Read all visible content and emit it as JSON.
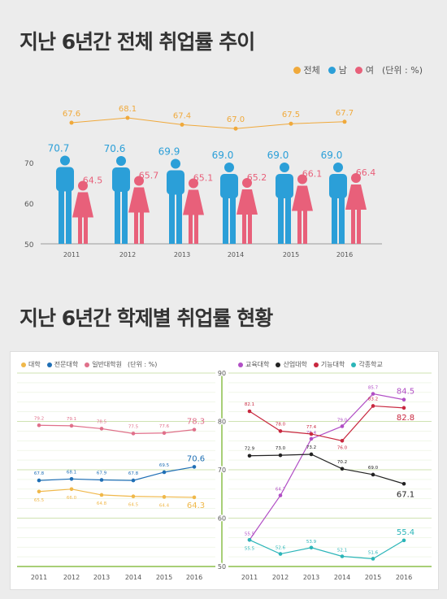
{
  "titles": {
    "top": "지난 6년간 전체 취업률 추이",
    "bottom": "지난 6년간 학제별 취업률 현황"
  },
  "legend_top": {
    "items": [
      {
        "label": "전체",
        "color": "#f0a93b"
      },
      {
        "label": "남",
        "color": "#2b9fd8"
      },
      {
        "label": "여",
        "color": "#e8607a"
      }
    ],
    "unit": "(단위 : %)"
  },
  "chart_data": [
    {
      "type": "line",
      "title": "지난 6년간 전체 취업률 추이",
      "x": [
        "2011",
        "2012",
        "2013",
        "2014",
        "2015",
        "2016"
      ],
      "yticks": [
        "70",
        "60",
        "50"
      ],
      "ylim": [
        50,
        73
      ],
      "series": [
        {
          "name": "전체",
          "color": "#f0a93b",
          "values": [
            67.6,
            68.1,
            67.4,
            67.0,
            67.5,
            67.7
          ],
          "labels": [
            "67.6",
            "68.1",
            "67.4",
            "67.0",
            "67.5",
            "67.7"
          ]
        },
        {
          "name": "남",
          "color": "#2b9fd8",
          "values": [
            70.7,
            70.6,
            69.9,
            69.0,
            69.0,
            69.0
          ],
          "labels": [
            "70.7",
            "70.6",
            "69.9",
            "69.0",
            "69.0",
            "69.0"
          ]
        },
        {
          "name": "여",
          "color": "#e8607a",
          "values": [
            64.5,
            65.7,
            65.1,
            65.2,
            66.1,
            66.4
          ],
          "labels": [
            "64.5",
            "65.7",
            "65.1",
            "65.2",
            "66.1",
            "66.4"
          ]
        }
      ]
    },
    {
      "type": "line",
      "title": "지난 6년간 학제별 취업률 현황",
      "x": [
        "2011",
        "2012",
        "2013",
        "2014",
        "2015",
        "2016"
      ],
      "yticks": [
        "90",
        "80",
        "70",
        "60",
        "50"
      ],
      "ylim": [
        50,
        90
      ],
      "unit": "(단위 : %)",
      "panels": [
        {
          "series": [
            {
              "name": "대학",
              "color": "#f0b84a",
              "values": [
                65.5,
                66.0,
                64.8,
                64.5,
                64.4,
                64.3
              ],
              "labels": [
                "65.5",
                "66.0",
                "64.8",
                "64.5",
                "64.4",
                "64.3"
              ]
            },
            {
              "name": "전문대학",
              "color": "#1f6fb5",
              "values": [
                67.8,
                68.1,
                67.9,
                67.8,
                69.5,
                70.6
              ],
              "labels": [
                "67.8",
                "68.1",
                "67.9",
                "67.8",
                "69.5",
                "70.6"
              ]
            },
            {
              "name": "일반대학원",
              "color": "#e0708a",
              "values": [
                79.2,
                79.1,
                78.5,
                77.5,
                77.6,
                78.3
              ],
              "labels": [
                "79.2",
                "79.1",
                "78.5",
                "77.5",
                "77.6",
                "78.3"
              ]
            }
          ]
        },
        {
          "series": [
            {
              "name": "교육대학",
              "color": "#b14fc5",
              "values": [
                55.5,
                64.7,
                76.4,
                79.0,
                85.7,
                84.5
              ],
              "labels": [
                "55.5",
                "64.7",
                "76.4",
                "79.0",
                "85.7",
                "84.5"
              ]
            },
            {
              "name": "산업대학",
              "color": "#222222",
              "values": [
                72.9,
                73.0,
                73.2,
                70.2,
                69.0,
                67.1
              ],
              "labels": [
                "72.9",
                "73.0",
                "73.2",
                "70.2",
                "69.0",
                "67.1"
              ]
            },
            {
              "name": "기능대학",
              "color": "#c8283f",
              "values": [
                82.1,
                78.0,
                77.4,
                76.0,
                83.2,
                82.8
              ],
              "labels": [
                "82.1",
                "78.0",
                "77.4",
                "76.0",
                "83.2",
                "82.8"
              ]
            },
            {
              "name": "각종학교",
              "color": "#2bb5b8",
              "values": [
                55.5,
                52.6,
                53.9,
                52.1,
                51.6,
                55.4
              ],
              "labels": [
                "55.5",
                "52.6",
                "53.9",
                "52.1",
                "51.6",
                "55.4"
              ]
            }
          ]
        }
      ]
    }
  ]
}
